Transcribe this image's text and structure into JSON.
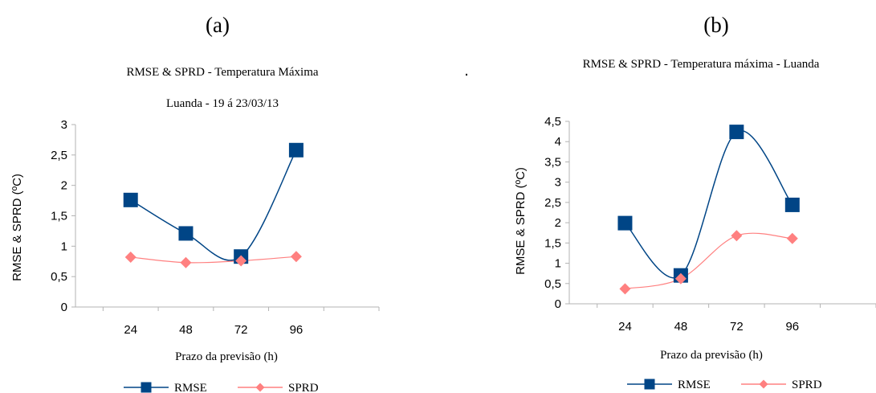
{
  "figure": {
    "stray_mark": "."
  },
  "chart_data": [
    {
      "type": "line",
      "panel_label": "(a)",
      "title": "RMSE & SPRD - Temperatura Máxima",
      "subtitle": "Luanda - 19 á 23/03/13",
      "xlabel": "Prazo da previsão (h)",
      "ylabel": "RMSE & SPRD (ºC)",
      "categories": [
        "24",
        "48",
        "72",
        "96"
      ],
      "ylim": [
        0,
        3
      ],
      "yticks": [
        "0",
        "0,5",
        "1",
        "1,5",
        "2",
        "2,5",
        "3"
      ],
      "grid": false,
      "legend": "bottom",
      "series": [
        {
          "name": "RMSE",
          "values": [
            1.76,
            1.21,
            0.83,
            2.58
          ],
          "color": "#004586",
          "marker": "square"
        },
        {
          "name": "SPRD",
          "values": [
            0.82,
            0.73,
            0.76,
            0.83
          ],
          "color": "#ff8080",
          "marker": "diamond"
        }
      ]
    },
    {
      "type": "line",
      "panel_label": "(b)",
      "title": "RMSE & SPRD - Temperatura máxima - Luanda",
      "subtitle": "",
      "xlabel": "Prazo da previsão (h)",
      "ylabel": "RMSE & SPRD (ºC)",
      "categories": [
        "24",
        "48",
        "72",
        "96"
      ],
      "ylim": [
        0,
        4.5
      ],
      "yticks": [
        "0",
        "0,5",
        "1",
        "1,5",
        "2",
        "2,5",
        "3",
        "3,5",
        "4",
        "4,5"
      ],
      "grid": false,
      "legend": "bottom",
      "series": [
        {
          "name": "RMSE",
          "values": [
            1.99,
            0.7,
            4.24,
            2.44
          ],
          "color": "#004586",
          "marker": "square"
        },
        {
          "name": "SPRD",
          "values": [
            0.37,
            0.62,
            1.68,
            1.61
          ],
          "color": "#ff8080",
          "marker": "diamond"
        }
      ]
    }
  ]
}
